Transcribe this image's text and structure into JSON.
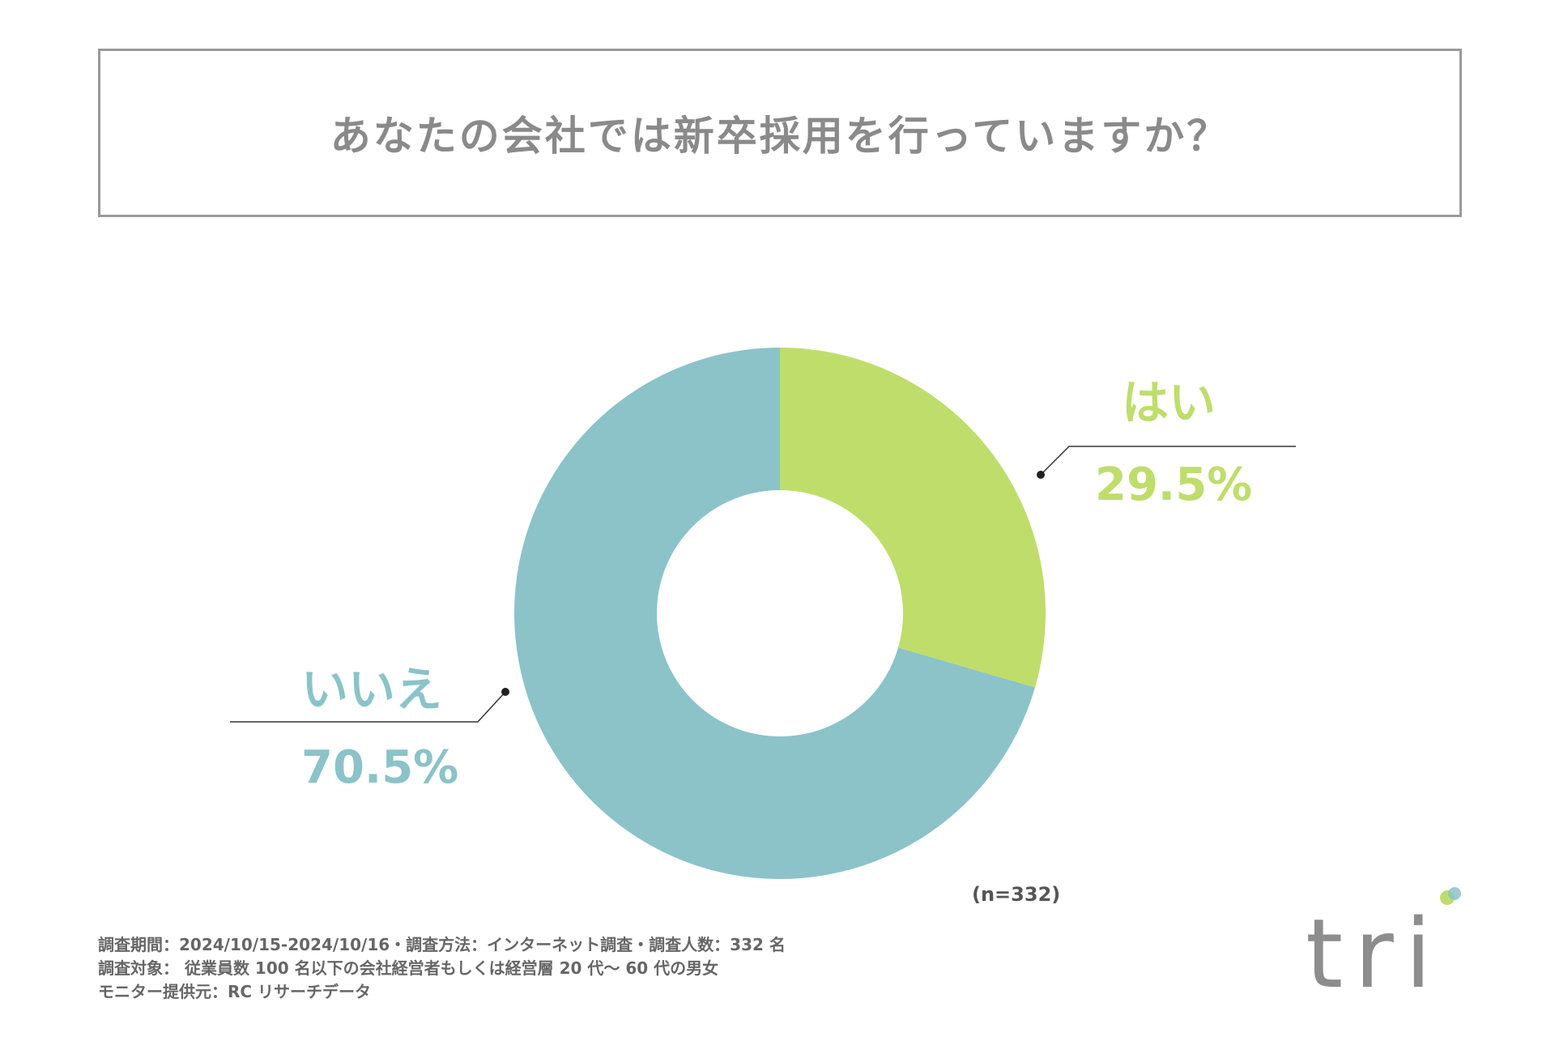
{
  "title": "あなたの会社では新卒採用を行っていますか？",
  "chart_data": {
    "type": "pie",
    "subtype": "donut",
    "slices": [
      {
        "label": "はい",
        "value": 29.5,
        "display": "29.5%",
        "color": "#bfdd6b"
      },
      {
        "label": "いいえ",
        "value": 70.5,
        "display": "70.5%",
        "color": "#8bc3c8"
      }
    ],
    "start": "12 o'clock",
    "direction": "clockwise"
  },
  "sample_note": "(n=332)",
  "footnotes": [
    "調査期間：2024/10/15-2024/10/16・調査方法：インターネット調査・調査人数：332 名",
    "調査対象： 従業員数 100 名以下の会社経営者もしくは経営層 20 代～ 60 代の男女",
    "モニター提供元：RC リサーチデータ"
  ],
  "logo": {
    "text": "tri",
    "text_color": "#8d8d8d",
    "dot_colors": [
      "#bfdd6b",
      "#8bc3c8"
    ]
  }
}
